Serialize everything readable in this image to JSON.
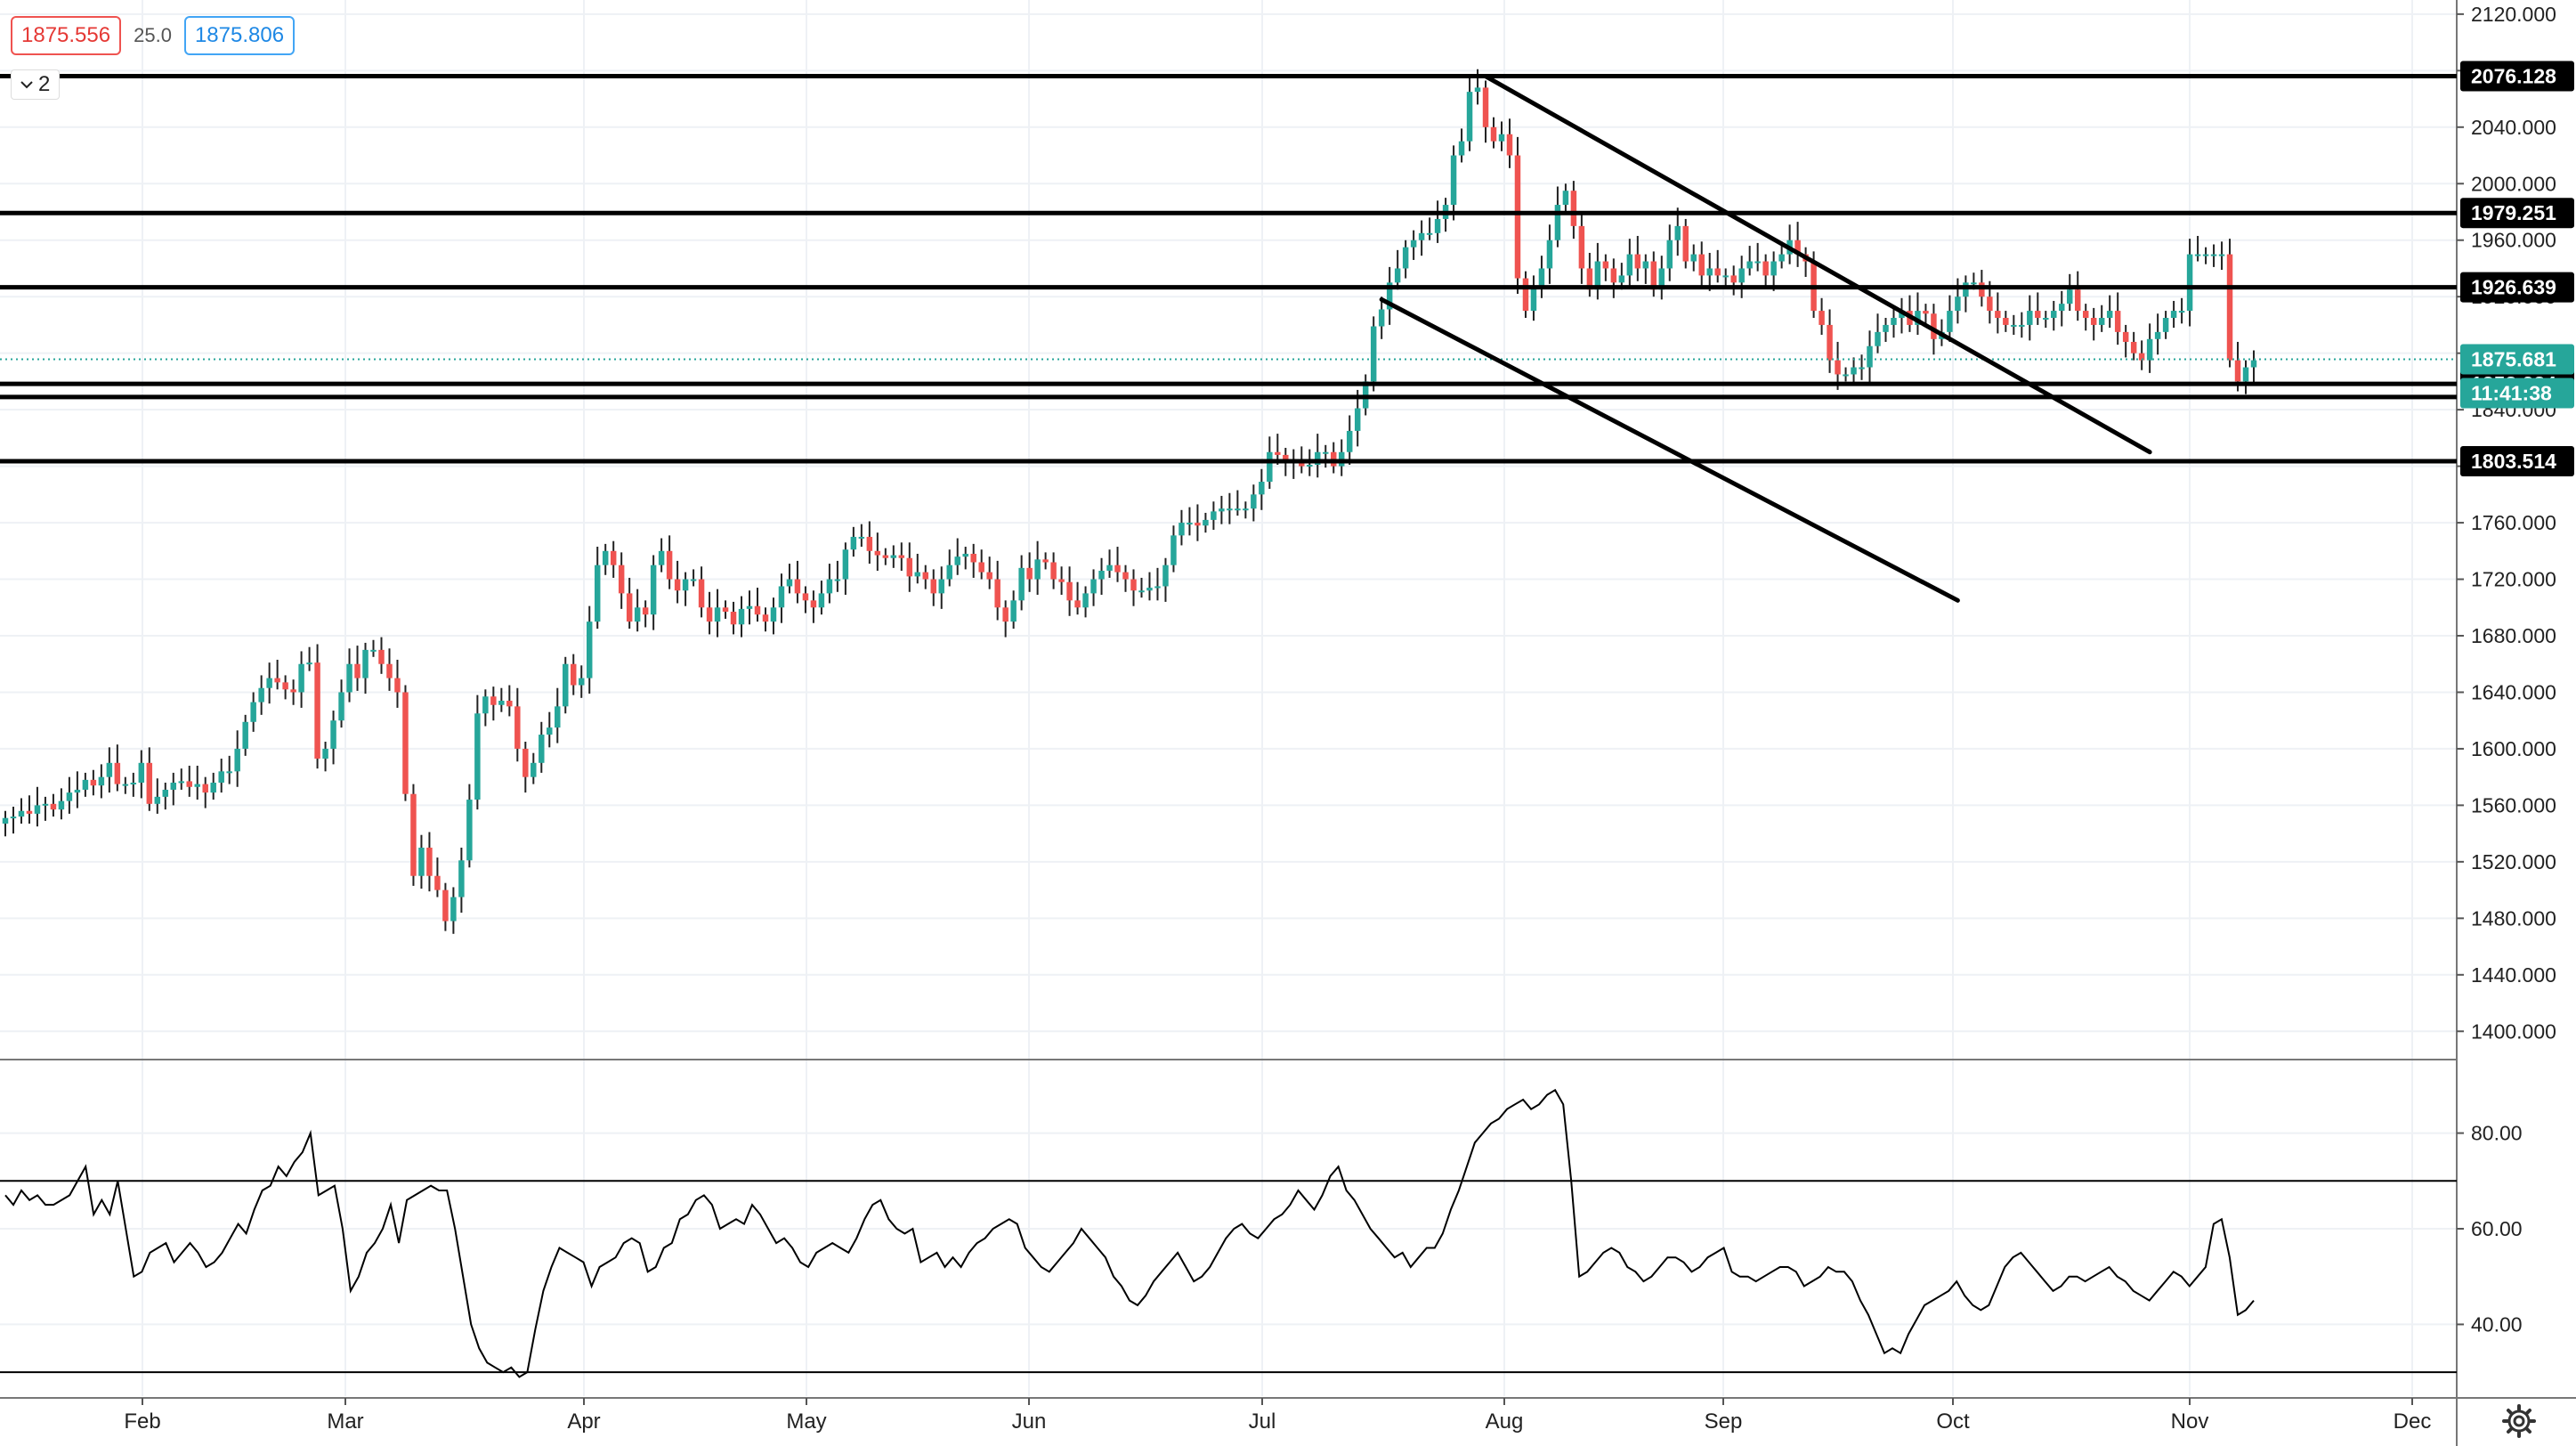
{
  "header": {
    "sell_price": "1875.556",
    "spread": "25.0",
    "buy_price": "1875.806",
    "indicators_count": "2"
  },
  "colors": {
    "up": "#26a69a",
    "down": "#ef5350",
    "line": "#000000",
    "grid": "#eef1f5",
    "current_price": "#26a69a"
  },
  "chart_data": [
    {
      "type": "candlestick",
      "ylim": [
        1380,
        2130
      ],
      "y_ticks": [
        "2120.000",
        "2080.000",
        "2040.000",
        "2000.000",
        "1960.000",
        "1920.000",
        "1880.000",
        "1840.000",
        "1800.000",
        "1760.000",
        "1720.000",
        "1680.000",
        "1640.000",
        "1600.000",
        "1560.000",
        "1520.000",
        "1480.000",
        "1440.000",
        "1400.000"
      ],
      "x_labels": [
        "Feb",
        "Mar",
        "Apr",
        "May",
        "Jun",
        "Jul",
        "Aug",
        "Sep",
        "Oct",
        "Nov",
        "Dec"
      ],
      "closes": [
        1551,
        1552,
        1556,
        1554,
        1560,
        1561,
        1557,
        1563,
        1569,
        1571,
        1578,
        1574,
        1580,
        1590,
        1575,
        1575,
        1576,
        1590,
        1561,
        1566,
        1571,
        1576,
        1577,
        1573,
        1575,
        1569,
        1576,
        1584,
        1584,
        1600,
        1619,
        1633,
        1643,
        1650,
        1647,
        1642,
        1640,
        1660,
        1661,
        1593,
        1600,
        1620,
        1640,
        1660,
        1650,
        1670,
        1670,
        1660,
        1650,
        1640,
        1568,
        1510,
        1530,
        1510,
        1500,
        1478,
        1495,
        1521,
        1564,
        1625,
        1637,
        1631,
        1634,
        1630,
        1600,
        1580,
        1590,
        1610,
        1615,
        1630,
        1660,
        1645,
        1650,
        1690,
        1730,
        1740,
        1730,
        1710,
        1690,
        1700,
        1695,
        1730,
        1740,
        1720,
        1712,
        1720,
        1720,
        1700,
        1690,
        1700,
        1697,
        1688,
        1699,
        1701,
        1695,
        1690,
        1700,
        1715,
        1720,
        1710,
        1705,
        1700,
        1710,
        1720,
        1720,
        1741,
        1750,
        1750,
        1740,
        1737,
        1735,
        1737,
        1735,
        1722,
        1725,
        1720,
        1710,
        1720,
        1730,
        1736,
        1738,
        1732,
        1725,
        1720,
        1700,
        1690,
        1705,
        1728,
        1720,
        1734,
        1732,
        1720,
        1718,
        1705,
        1700,
        1710,
        1720,
        1726,
        1730,
        1725,
        1720,
        1712,
        1712,
        1714,
        1715,
        1730,
        1751,
        1760,
        1760,
        1758,
        1762,
        1768,
        1770,
        1770,
        1770,
        1770,
        1780,
        1789,
        1810,
        1808,
        1802,
        1805,
        1800,
        1801,
        1810,
        1810,
        1800,
        1810,
        1825,
        1841,
        1860,
        1899,
        1911,
        1930,
        1940,
        1955,
        1960,
        1965,
        1965,
        1975,
        1985,
        2020,
        2030,
        2065,
        2068,
        2040,
        2030,
        2035,
        2020,
        1933,
        1910,
        1928,
        1940,
        1960,
        1985,
        1995,
        1970,
        1940,
        1925,
        1945,
        1940,
        1930,
        1935,
        1950,
        1940,
        1945,
        1925,
        1940,
        1960,
        1970,
        1945,
        1950,
        1935,
        1940,
        1935,
        1935,
        1930,
        1940,
        1945,
        1945,
        1935,
        1945,
        1950,
        1960,
        1950,
        1945,
        1910,
        1900,
        1875,
        1865,
        1865,
        1870,
        1870,
        1885,
        1895,
        1900,
        1905,
        1910,
        1900,
        1910,
        1908,
        1890,
        1895,
        1910,
        1920,
        1930,
        1930,
        1920,
        1910,
        1905,
        1900,
        1900,
        1900,
        1910,
        1905,
        1905,
        1910,
        1915,
        1925,
        1910,
        1905,
        1900,
        1905,
        1910,
        1895,
        1888,
        1880,
        1875,
        1890,
        1895,
        1905,
        1910,
        1910,
        1950,
        1950,
        1950,
        1950,
        1950,
        1875,
        1860,
        1870,
        1875
      ],
      "current_price": 1875.681,
      "current_price_label": "1875.681",
      "countdown_label": "11:41:38",
      "horizontal_levels": [
        {
          "value": 2076.128,
          "label": "2076.128"
        },
        {
          "value": 1979.251,
          "label": "1979.251"
        },
        {
          "value": 1926.639,
          "label": "1926.639"
        },
        {
          "value": 1858.284,
          "label": "1858.284"
        },
        {
          "value": 1803.514,
          "label": "1803.514"
        }
      ]
    },
    {
      "type": "line",
      "name": "RSI",
      "ylim": [
        25,
        95
      ],
      "y_ticks": [
        "80.00",
        "60.00",
        "40.00"
      ],
      "levels": [
        70,
        30
      ],
      "values": [
        67,
        65,
        68,
        66,
        67,
        65,
        65,
        66,
        67,
        70,
        73,
        63,
        66,
        63,
        70,
        60,
        50,
        51,
        55,
        56,
        57,
        53,
        55,
        57,
        55,
        52,
        53,
        55,
        58,
        61,
        59,
        64,
        68,
        69,
        73,
        71,
        74,
        76,
        80,
        67,
        68,
        69,
        60,
        47,
        50,
        55,
        57,
        60,
        65,
        57,
        66,
        67,
        68,
        69,
        68,
        68,
        60,
        50,
        40,
        35,
        32,
        31,
        30,
        31,
        29,
        30,
        39,
        47,
        52,
        56,
        55,
        54,
        53,
        48,
        52,
        53,
        54,
        57,
        58,
        57,
        51,
        52,
        56,
        57,
        62,
        63,
        66,
        67,
        65,
        60,
        61,
        62,
        61,
        65,
        63,
        60,
        57,
        58,
        56,
        53,
        52,
        55,
        56,
        57,
        56,
        55,
        58,
        62,
        65,
        66,
        62,
        60,
        59,
        60,
        53,
        54,
        55,
        52,
        54,
        52,
        55,
        57,
        58,
        60,
        61,
        62,
        61,
        56,
        54,
        52,
        51,
        53,
        55,
        57,
        60,
        58,
        56,
        54,
        50,
        48,
        45,
        44,
        46,
        49,
        51,
        53,
        55,
        52,
        49,
        50,
        52,
        55,
        58,
        60,
        61,
        59,
        58,
        60,
        62,
        63,
        65,
        68,
        66,
        64,
        67,
        71,
        73,
        68,
        66,
        63,
        60,
        58,
        56,
        54,
        55,
        52,
        54,
        56,
        56,
        59,
        64,
        68,
        73,
        78,
        80,
        82,
        83,
        85,
        86,
        87,
        85,
        86,
        88,
        89,
        86,
        70,
        50,
        51,
        53,
        55,
        56,
        55,
        52,
        51,
        49,
        50,
        52,
        54,
        54,
        53,
        51,
        52,
        54,
        55,
        56,
        51,
        50,
        50,
        49,
        50,
        51,
        52,
        52,
        51,
        48,
        49,
        50,
        52,
        51,
        51,
        49,
        45,
        42,
        38,
        34,
        35,
        34,
        38,
        41,
        44,
        45,
        46,
        47,
        49,
        46,
        44,
        43,
        44,
        48,
        52,
        54,
        55,
        53,
        51,
        49,
        47,
        48,
        50,
        50,
        49,
        50,
        51,
        52,
        50,
        49,
        47,
        46,
        45,
        47,
        49,
        51,
        50,
        48,
        50,
        52,
        61,
        62,
        54,
        42,
        43,
        45
      ]
    }
  ]
}
